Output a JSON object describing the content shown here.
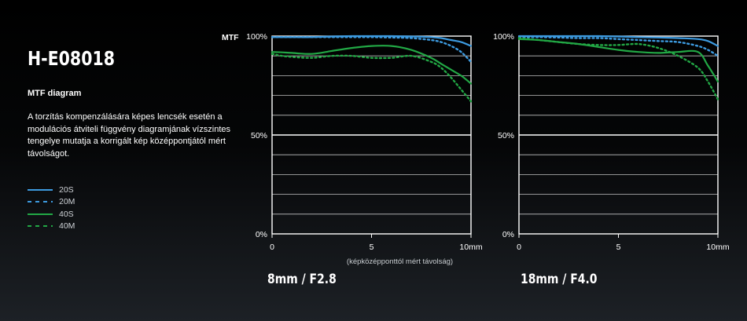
{
  "title": "H-E08018",
  "subtitle": "MTF diagram",
  "description": "A torzítás kompenzálására képes lencsék esetén a modulációs átviteli függvény diagramjának vízszintes tengelye mutatja a korrigált kép középpontjától mért távolságot.",
  "legend": [
    {
      "label": "20S",
      "color": "#3d9be0",
      "dash": false
    },
    {
      "label": "20M",
      "color": "#3d9be0",
      "dash": true
    },
    {
      "label": "40S",
      "color": "#22a845",
      "dash": false
    },
    {
      "label": "40M",
      "color": "#22a845",
      "dash": true
    }
  ],
  "chart_data": [
    {
      "type": "line",
      "caption": "8mm / F2.8",
      "ylabel": "MTF",
      "xlabel": "(képközépponttól mért távolság)",
      "xlim": [
        0,
        10
      ],
      "ylim": [
        0,
        100
      ],
      "xticks": [
        "0",
        "5",
        "10mm"
      ],
      "yticks": [
        "0%",
        "50%",
        "100%"
      ],
      "series": [
        {
          "name": "20S",
          "x": [
            0,
            1,
            2,
            3,
            4,
            5,
            6,
            7,
            8,
            8.5,
            9,
            9.5,
            10
          ],
          "values": [
            99.5,
            99.5,
            99.5,
            99.8,
            100,
            100,
            100,
            99.8,
            99.5,
            99,
            98,
            97,
            95
          ]
        },
        {
          "name": "20M",
          "x": [
            0,
            1,
            2,
            3,
            4,
            5,
            6,
            7,
            8,
            8.5,
            9,
            9.5,
            10
          ],
          "values": [
            99.5,
            99.5,
            99.5,
            99.5,
            99.5,
            99.5,
            99.3,
            99,
            98,
            97,
            95,
            92,
            87
          ]
        },
        {
          "name": "40S",
          "x": [
            0,
            0.5,
            1,
            2,
            3,
            4,
            5,
            6,
            7,
            8,
            8.5,
            9,
            9.5,
            10
          ],
          "values": [
            92,
            91.8,
            91.5,
            91,
            92.5,
            94,
            95,
            95,
            93,
            89,
            86,
            83,
            80,
            76
          ]
        },
        {
          "name": "40M",
          "x": [
            0,
            0.5,
            1,
            2,
            3,
            4,
            5,
            6,
            7,
            8,
            8.5,
            9,
            9.5,
            10
          ],
          "values": [
            91,
            90,
            89.5,
            89,
            90,
            90,
            89,
            89,
            90,
            87,
            84,
            79,
            73,
            67
          ]
        }
      ]
    },
    {
      "type": "line",
      "caption": "18mm / F4.0",
      "xlim": [
        0,
        10
      ],
      "ylim": [
        0,
        100
      ],
      "xticks": [
        "0",
        "5",
        "10mm"
      ],
      "yticks": [
        "0%",
        "50%",
        "100%"
      ],
      "series": [
        {
          "name": "20S",
          "x": [
            0,
            1,
            2,
            3,
            4,
            5,
            6,
            7,
            8,
            9,
            9.5,
            10
          ],
          "values": [
            100,
            100,
            100,
            100,
            100,
            99.8,
            99.5,
            99.3,
            99,
            98.5,
            97.5,
            95
          ]
        },
        {
          "name": "20M",
          "x": [
            0,
            1,
            2,
            3,
            4,
            5,
            6,
            7,
            8,
            9,
            9.5,
            10
          ],
          "values": [
            99.5,
            99.5,
            99.3,
            99,
            99,
            98.5,
            98,
            97.5,
            97,
            95,
            93,
            90
          ]
        },
        {
          "name": "40S",
          "x": [
            0,
            1,
            2,
            3,
            4,
            5,
            6,
            7,
            8,
            9,
            9.5,
            10
          ],
          "values": [
            98.5,
            98,
            97,
            96,
            94.5,
            93,
            92,
            91.5,
            92,
            92,
            85,
            77
          ]
        },
        {
          "name": "40M",
          "x": [
            0,
            1,
            2,
            3,
            4,
            5,
            6,
            7,
            8,
            9,
            9.5,
            10
          ],
          "values": [
            99,
            98,
            97,
            96,
            95.5,
            95.5,
            96,
            94,
            90,
            84,
            77,
            68
          ]
        }
      ]
    }
  ]
}
